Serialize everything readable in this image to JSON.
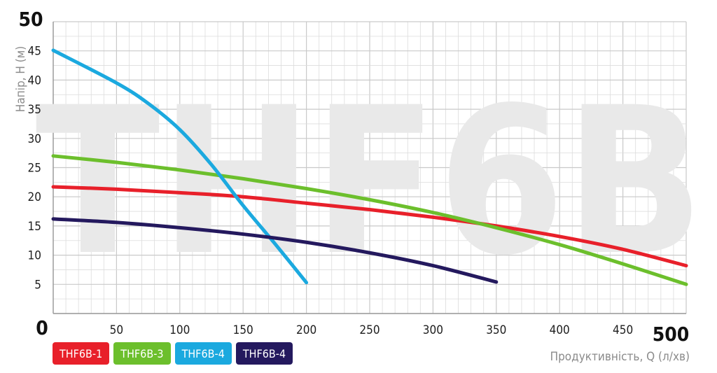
{
  "chart_data": {
    "type": "line",
    "watermark": "THF6B",
    "ylabel": "Напір, H (м)",
    "xlabel": "Продуктивність, Q (л/хв)",
    "xlim": [
      0,
      500
    ],
    "ylim": [
      0,
      50
    ],
    "x_ticks": [
      "0",
      "50",
      "100",
      "150",
      "200",
      "250",
      "300",
      "350",
      "400",
      "450",
      "500"
    ],
    "y_ticks": [
      "5",
      "10",
      "15",
      "20",
      "25",
      "30",
      "35",
      "40",
      "45",
      "50"
    ],
    "grid": true,
    "legend_position": "bottom-left",
    "series": [
      {
        "name": "THF6B-1",
        "color": "#e8202a",
        "points": [
          [
            0,
            21.7
          ],
          [
            50,
            21.3
          ],
          [
            100,
            20.7
          ],
          [
            150,
            20.0
          ],
          [
            200,
            18.9
          ],
          [
            250,
            17.8
          ],
          [
            300,
            16.5
          ],
          [
            350,
            15.0
          ],
          [
            400,
            13.2
          ],
          [
            450,
            11.0
          ],
          [
            500,
            8.2
          ]
        ]
      },
      {
        "name": "THF6B-3",
        "color": "#6cbf2c",
        "points": [
          [
            0,
            27.0
          ],
          [
            50,
            25.9
          ],
          [
            100,
            24.6
          ],
          [
            150,
            23.1
          ],
          [
            200,
            21.4
          ],
          [
            250,
            19.5
          ],
          [
            300,
            17.3
          ],
          [
            350,
            14.7
          ],
          [
            400,
            11.8
          ],
          [
            450,
            8.5
          ],
          [
            500,
            5.0
          ]
        ]
      },
      {
        "name": "THF6B-4",
        "color": "#1ba9df",
        "points": [
          [
            0,
            45.1
          ],
          [
            50,
            39.5
          ],
          [
            75,
            36.0
          ],
          [
            100,
            31.5
          ],
          [
            125,
            25.5
          ],
          [
            150,
            18.5
          ],
          [
            175,
            12.0
          ],
          [
            200,
            5.3
          ]
        ]
      },
      {
        "name": "THF6B-4",
        "color": "#24195e",
        "points": [
          [
            0,
            16.2
          ],
          [
            50,
            15.6
          ],
          [
            100,
            14.7
          ],
          [
            150,
            13.6
          ],
          [
            200,
            12.2
          ],
          [
            250,
            10.4
          ],
          [
            300,
            8.2
          ],
          [
            350,
            5.4
          ]
        ]
      }
    ]
  }
}
